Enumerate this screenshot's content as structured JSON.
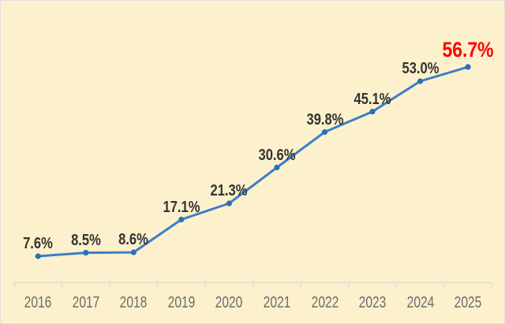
{
  "chart_data": {
    "type": "line",
    "title": "",
    "xlabel": "",
    "ylabel": "",
    "categories": [
      "2016",
      "2017",
      "2018",
      "2019",
      "2020",
      "2021",
      "2022",
      "2023",
      "2024",
      "2025"
    ],
    "values": [
      7.6,
      8.5,
      8.6,
      17.1,
      21.3,
      30.6,
      39.8,
      45.1,
      53.0,
      56.7
    ],
    "labels": [
      "7.6%",
      "8.5%",
      "8.6%",
      "17.1%",
      "21.3%",
      "30.6%",
      "39.8%",
      "45.1%",
      "53.0%",
      "56.7%"
    ],
    "highlight_index": 9,
    "grid": false,
    "legend": null,
    "y_axis_visible": false,
    "colors": {
      "background": "#FCF1CC",
      "line": "#3A80C6",
      "marker": "#2A70B8",
      "data_label": "#333333",
      "highlight_label": "#FF0000",
      "axis": "#E2DECE",
      "tick_label": "#6B6B6B",
      "frame_border": "#DEDEDE"
    }
  }
}
